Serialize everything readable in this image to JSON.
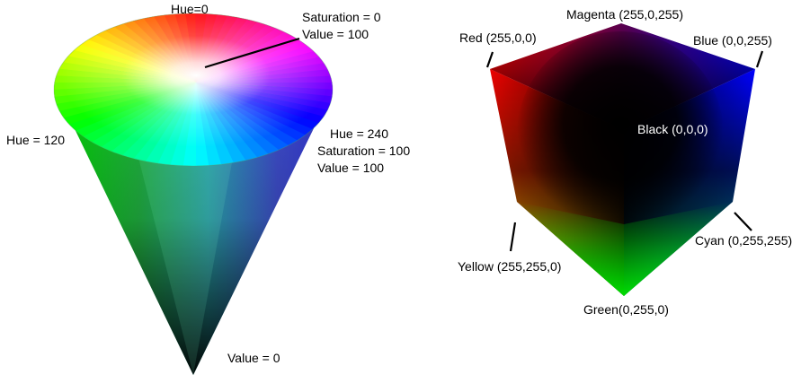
{
  "cone": {
    "label_hue0": "Hue=0",
    "label_center_sat": "Saturation = 0",
    "label_center_val": "Value = 100",
    "label_hue120": "Hue = 120",
    "label_blue_hue": "Hue = 240",
    "label_blue_sat": "Saturation = 100",
    "label_blue_val": "Value = 100",
    "label_apex": "Value = 0"
  },
  "cube": {
    "label_magenta": "Magenta (255,0,255)",
    "label_red": "Red (255,0,0)",
    "label_blue": "Blue (0,0,255)",
    "label_black": "Black (0,0,0)",
    "label_cyan": "Cyan (0,255,255)",
    "label_yellow": "Yellow (255,255,0)",
    "label_green": "Green(0,255,0)"
  },
  "colors": {
    "red": "#ff0000",
    "yellow": "#ffff00",
    "green": "#00ff00",
    "cyan": "#00ffff",
    "blue": "#0000ff",
    "magenta": "#ff00ff",
    "black": "#000000",
    "white": "#ffffff"
  }
}
